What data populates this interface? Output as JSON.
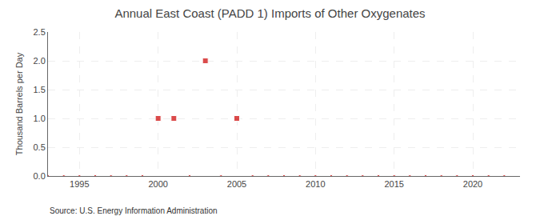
{
  "chart_data": {
    "type": "scatter",
    "title": "Annual East Coast (PADD 1) Imports of Other Oxygenates",
    "ylabel": "Thousand Barrels per Day",
    "annotations": [
      "Source: U.S. Energy Information Administration"
    ],
    "x": [
      1993,
      1994,
      1995,
      1996,
      1997,
      1998,
      1999,
      2000,
      2001,
      2002,
      2003,
      2004,
      2005,
      2006,
      2007,
      2008,
      2009,
      2010,
      2011,
      2012,
      2013,
      2014,
      2015,
      2016,
      2017,
      2018,
      2019,
      2020,
      2021,
      2022
    ],
    "values": [
      0.0,
      0.0,
      0.0,
      0.0,
      0.0,
      0.0,
      0.0,
      1.0,
      1.0,
      0.0,
      2.0,
      0.0,
      1.0,
      0.0,
      0.0,
      0.0,
      0.0,
      0.0,
      0.0,
      0.0,
      0.0,
      0.0,
      0.0,
      0.0,
      0.0,
      0.0,
      0.0,
      0.0,
      0.0,
      0.0
    ],
    "color": "#cc0000",
    "marker": "square",
    "xlim": [
      1993,
      2023
    ],
    "xticks": [
      1995,
      2000,
      2005,
      2010,
      2015,
      2020
    ],
    "ylim": [
      0.0,
      2.5
    ],
    "yticks": [
      {
        "value": 0.0,
        "label": "0.0"
      },
      0.5,
      {
        "value": 1.0,
        "label": "1.0"
      },
      1.5,
      {
        "value": 2.0,
        "label": "2.0"
      },
      2.5
    ],
    "grid": true
  }
}
